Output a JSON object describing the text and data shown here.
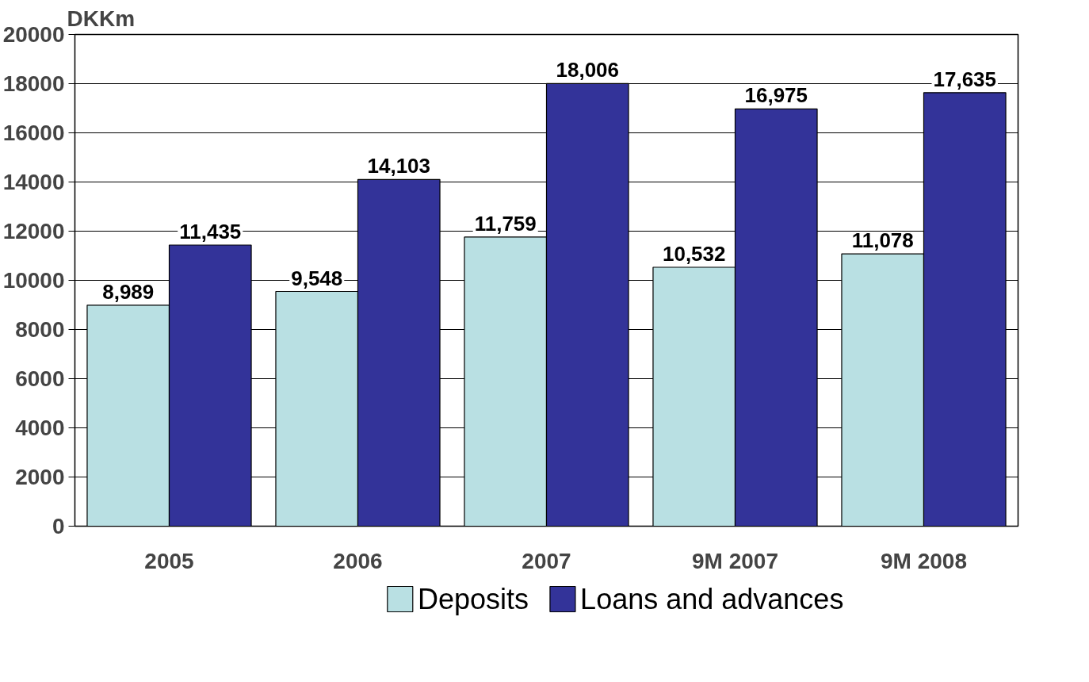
{
  "chart_data": {
    "type": "bar",
    "ylabel": "DKKm",
    "categories": [
      "2005",
      "2006",
      "2007",
      "9M 2007",
      "9M 2008"
    ],
    "series": [
      {
        "name": "Deposits",
        "color": "#b9e0e3",
        "values": [
          8989,
          9548,
          11759,
          10532,
          11078
        ],
        "value_labels": [
          "8,989",
          "9,548",
          "11,759",
          "10,532",
          "11,078"
        ]
      },
      {
        "name": "Loans and advances",
        "color": "#333399",
        "values": [
          11435,
          14103,
          18006,
          16975,
          17635
        ],
        "value_labels": [
          "11,435",
          "14,103",
          "18,006",
          "16,975",
          "17,635"
        ]
      }
    ],
    "ylim": [
      0,
      20000
    ],
    "yticks": [
      0,
      2000,
      4000,
      6000,
      8000,
      10000,
      12000,
      14000,
      16000,
      18000,
      20000
    ],
    "grid": "y",
    "legend": "bottom"
  }
}
